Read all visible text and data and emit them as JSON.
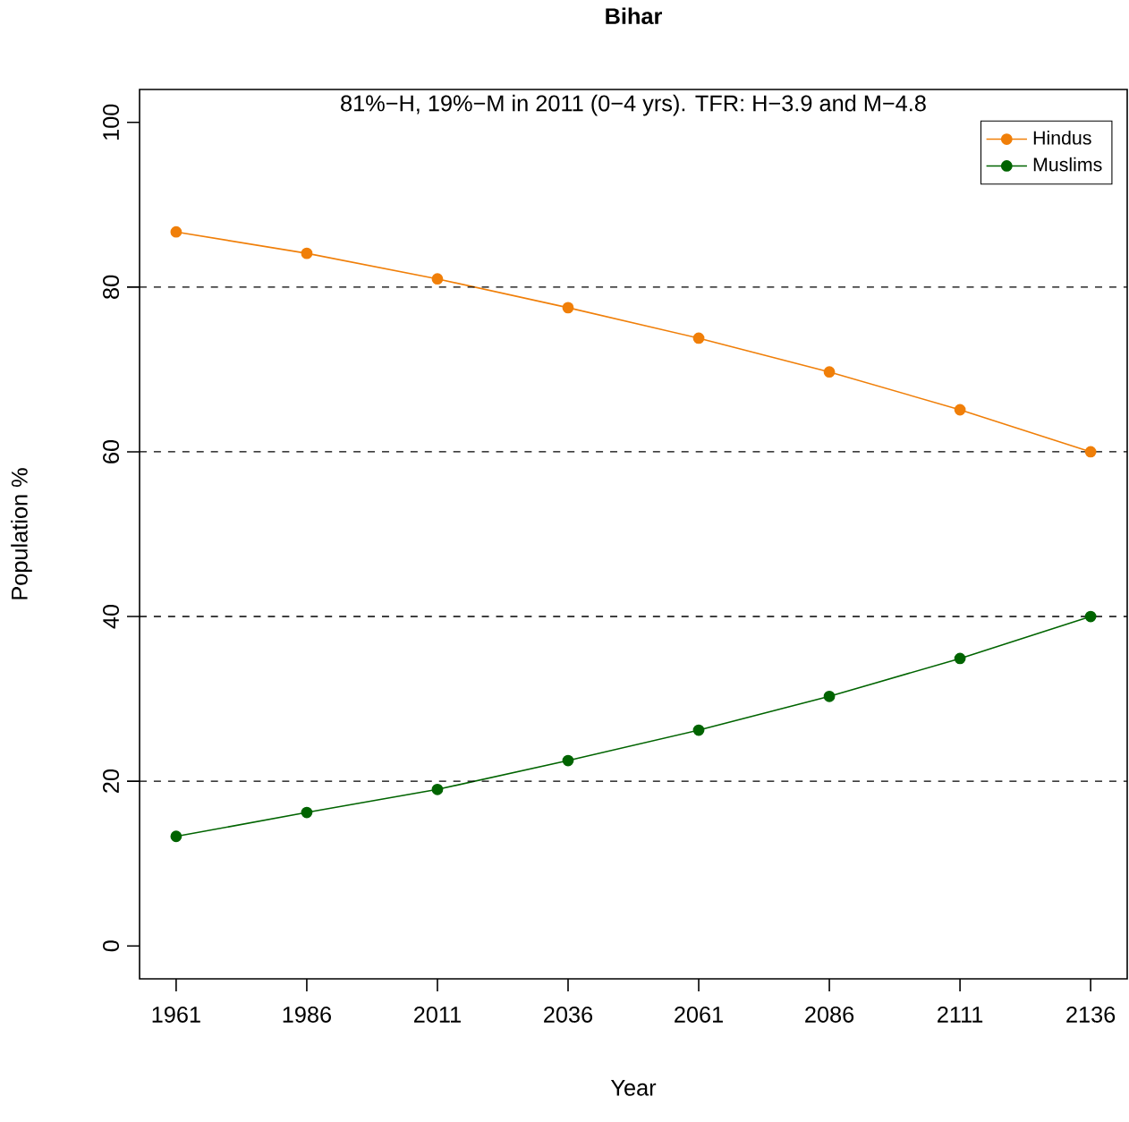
{
  "chart_data": {
    "type": "line",
    "title": "Bihar",
    "subtitle": "81%−H, 19%−M in 2011 (0−4 yrs). TFR: H−3.9 and M−4.8",
    "xlabel": "Year",
    "ylabel": "Population %",
    "x": [
      1961,
      1986,
      2011,
      2036,
      2061,
      2086,
      2111,
      2136
    ],
    "series": [
      {
        "name": "Hindus",
        "color": "#f07f09",
        "values": [
          86.7,
          84.1,
          81.0,
          77.5,
          73.8,
          69.7,
          65.1,
          60.0
        ]
      },
      {
        "name": "Muslims",
        "color": "#006400",
        "values": [
          13.3,
          16.2,
          19.0,
          22.5,
          26.2,
          30.3,
          34.9,
          40.0
        ]
      }
    ],
    "xlim": [
      1954,
      2143
    ],
    "ylim": [
      -4,
      104
    ],
    "xticks": [
      1961,
      1986,
      2011,
      2036,
      2061,
      2086,
      2111,
      2136
    ],
    "yticks": [
      0,
      20,
      40,
      60,
      80,
      100
    ],
    "ref_lines": [
      {
        "axis": "y",
        "value": 20,
        "line_style": "dashed",
        "color": "#000000"
      },
      {
        "axis": "y",
        "value": 40,
        "line_style": "dashed",
        "color": "#000000"
      },
      {
        "axis": "y",
        "value": 60,
        "line_style": "dashed",
        "color": "#000000"
      },
      {
        "axis": "y",
        "value": 80,
        "line_style": "dashed",
        "color": "#000000"
      }
    ],
    "marker": "circle",
    "line_style": "solid",
    "legend": "top right",
    "grid": false
  }
}
